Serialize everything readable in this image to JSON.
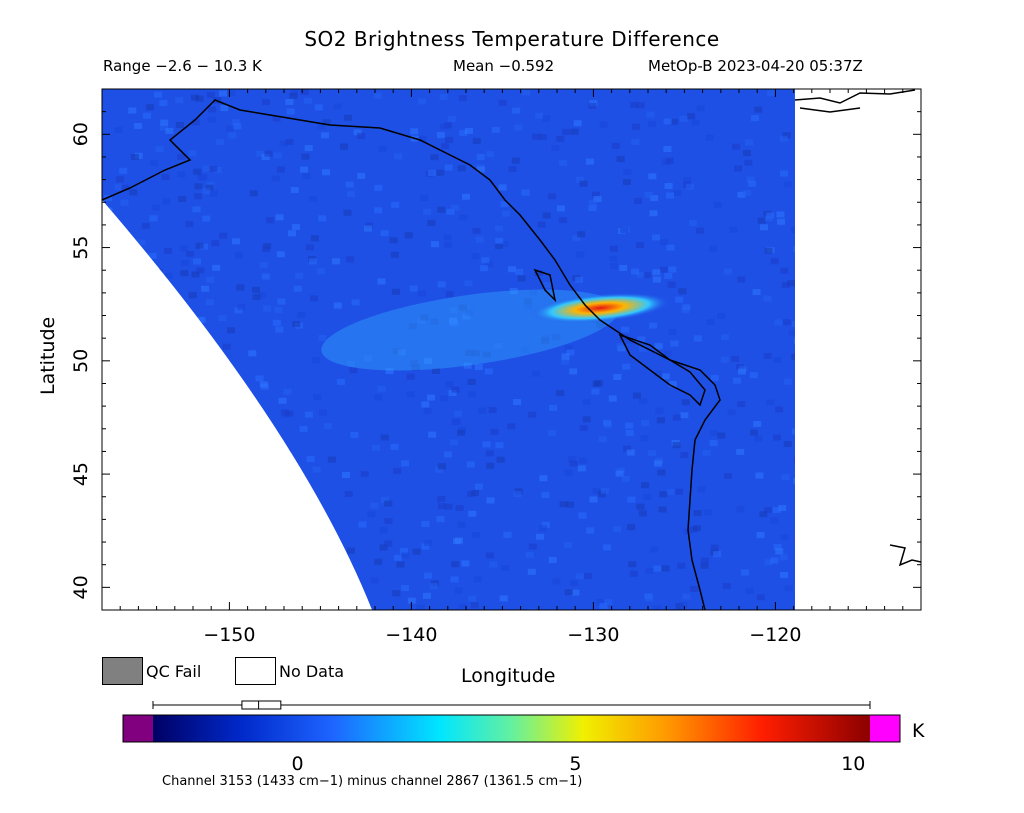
{
  "header": {
    "title": "SO2 Brightness Temperature Difference",
    "range": "Range −2.6 − 10.3 K",
    "mean": "Mean −0.592",
    "satellite": "MetOp-B 2023-04-20 05:37Z"
  },
  "axes": {
    "xlabel": "Longitude",
    "ylabel": "Latitude",
    "xticks": [
      {
        "value": -150,
        "label": "−150"
      },
      {
        "value": -140,
        "label": "−140"
      },
      {
        "value": -130,
        "label": "−130"
      },
      {
        "value": -120,
        "label": "−120"
      }
    ],
    "yticks": [
      {
        "value": 40,
        "label": "40"
      },
      {
        "value": 45,
        "label": "45"
      },
      {
        "value": 50,
        "label": "50"
      },
      {
        "value": 55,
        "label": "55"
      },
      {
        "value": 60,
        "label": "60"
      }
    ],
    "xlim": [
      -157,
      -112
    ],
    "ylim": [
      39,
      62
    ]
  },
  "legend": {
    "qc_fail_label": "QC Fail",
    "qc_fail_color": "#808080",
    "no_data_label": "No Data",
    "no_data_color": "#ffffff"
  },
  "colorbar": {
    "unit": "K",
    "min": -2.6,
    "max": 10.3,
    "underflow_color": "#800080",
    "overflow_color": "#ff00ff",
    "ticks": [
      {
        "value": 0,
        "label": "0"
      },
      {
        "value": 5,
        "label": "5"
      },
      {
        "value": 10,
        "label": "10"
      }
    ],
    "caption": "Channel 3153 (1433 cm−1) minus channel 2867 (1361.5 cm−1)",
    "boxplot": {
      "whisker_low": -2.6,
      "q1": -1.0,
      "median": -0.7,
      "q3": -0.3,
      "whisker_high": 10.3
    }
  },
  "colors": {
    "background_field": "#1e50e6",
    "plume_low": "#32c8ff",
    "plume_mid": "#ffb400",
    "plume_high": "#e61414",
    "coastline": "#000000"
  },
  "features": {
    "plume_center_lat": 52.3,
    "plume_peak_lon": -127.5
  }
}
